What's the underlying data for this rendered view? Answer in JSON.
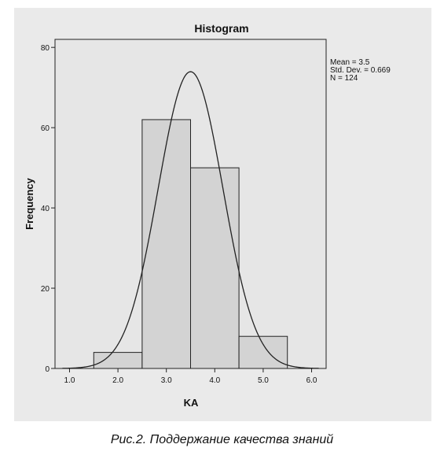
{
  "chart_data": {
    "type": "bar",
    "title": "Histogram",
    "xlabel": "KA",
    "ylabel": "Frequency",
    "x_ticks": [
      "1.0",
      "2.0",
      "3.0",
      "4.0",
      "5.0",
      "6.0"
    ],
    "y_ticks": [
      "0",
      "20",
      "40",
      "60",
      "80"
    ],
    "xlim": [
      0.7,
      6.3
    ],
    "ylim": [
      0,
      82
    ],
    "bins": [
      {
        "start": 1.5,
        "end": 2.5,
        "value": 4
      },
      {
        "start": 2.5,
        "end": 3.5,
        "value": 62
      },
      {
        "start": 3.5,
        "end": 4.5,
        "value": 50
      },
      {
        "start": 4.5,
        "end": 5.5,
        "value": 8
      }
    ],
    "normal_curve": {
      "mean": 3.5,
      "std": 0.669,
      "n": 124,
      "bin_width": 1
    },
    "stats": [
      "Mean = 3.5",
      "Std. Dev. = 0.669",
      "N = 124"
    ],
    "grid": false,
    "colors": {
      "bar_fill": "#d3d3d3",
      "plot_bg": "#e6e6e6",
      "outer_bg": "#eaeaea",
      "stroke": "#222222"
    }
  },
  "caption": "Рис.2. Поддержание качества знаний"
}
